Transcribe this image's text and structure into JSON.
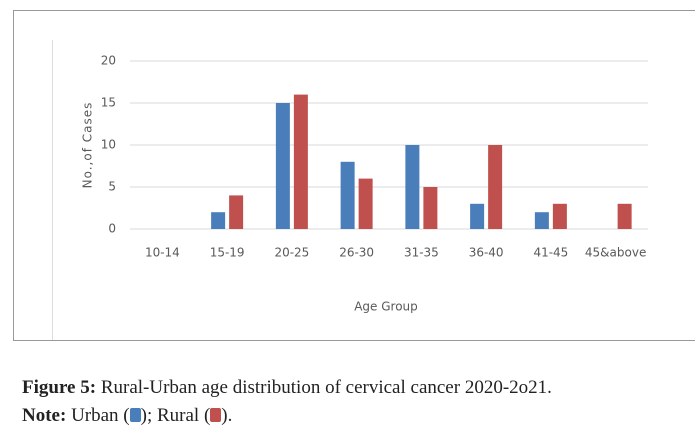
{
  "chart_data": {
    "type": "bar",
    "title": null,
    "xlabel": "Age Group",
    "ylabel": "No.,of Cases",
    "categories": [
      "10-14",
      "15-19",
      "20-25",
      "26-30",
      "31-35",
      "36-40",
      "41-45",
      "45&above"
    ],
    "series": [
      {
        "name": "Urban",
        "color": "#4a7ebb",
        "values": [
          0,
          2,
          15,
          8,
          10,
          3,
          2,
          0
        ]
      },
      {
        "name": "Rural",
        "color": "#c0504d",
        "values": [
          0,
          4,
          16,
          6,
          5,
          10,
          3,
          3
        ]
      }
    ],
    "ylim": [
      0,
      20
    ],
    "yticks": [
      0,
      5,
      10,
      15,
      20
    ],
    "grid": true
  },
  "caption": {
    "label": "Figure 5:",
    "text": "Rural-Urban age distribution of cervical cancer 2020-2o21.",
    "note_label": "Note:"
  }
}
